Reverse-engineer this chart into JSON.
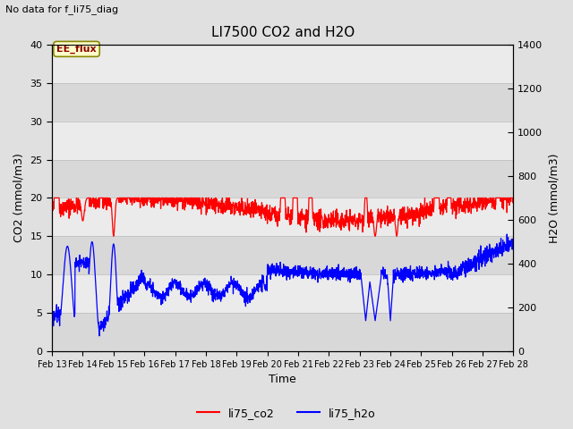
{
  "title": "LI7500 CO2 and H2O",
  "subtitle": "No data for f_li75_diag",
  "xlabel": "Time",
  "ylabel_left": "CO2 (mmol/m3)",
  "ylabel_right": "H2O (mmol/m3)",
  "ylim_left": [
    0,
    40
  ],
  "ylim_right": [
    0,
    1400
  ],
  "yticks_left": [
    0,
    5,
    10,
    15,
    20,
    25,
    30,
    35,
    40
  ],
  "yticks_right": [
    0,
    200,
    400,
    600,
    800,
    1000,
    1200,
    1400
  ],
  "xticklabels": [
    "Feb 13",
    "Feb 14",
    "Feb 15",
    "Feb 16",
    "Feb 17",
    "Feb 18",
    "Feb 19",
    "Feb 20",
    "Feb 21",
    "Feb 22",
    "Feb 23",
    "Feb 24",
    "Feb 25",
    "Feb 26",
    "Feb 27",
    "Feb 28"
  ],
  "legend_label_co2": "li75_co2",
  "legend_label_h2o": "li75_h2o",
  "annotation_text": "EE_flux",
  "color_co2": "#FF0000",
  "color_h2o": "#0000FF",
  "bg_color": "#E0E0E0",
  "plot_bg_color": "#E8E8E8",
  "band_light": "#EBEBEB",
  "band_dark": "#D8D8D8",
  "n_points": 2000,
  "seed": 42
}
